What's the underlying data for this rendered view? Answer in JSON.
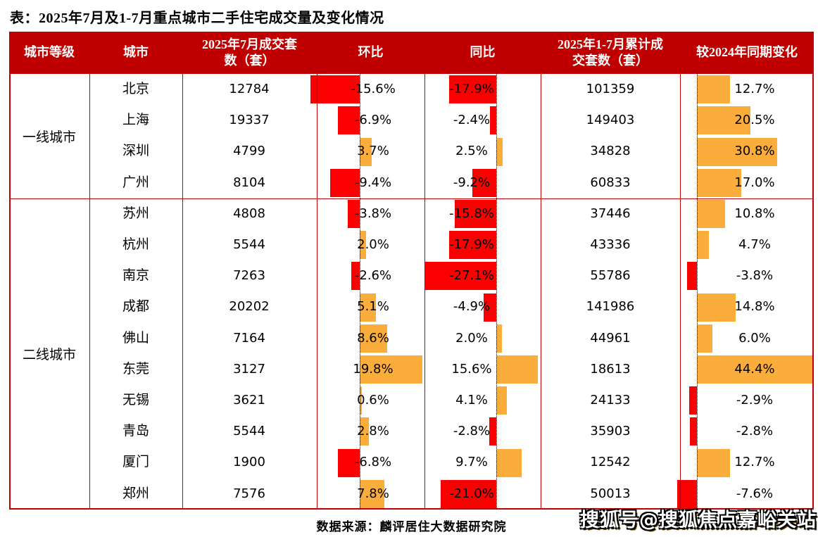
{
  "title": "表：2025年7月及1-7月重点城市二手住宅成交量及变化情况",
  "colors": {
    "header_bg": "#c00000",
    "border": "#c00000",
    "bar_negative": "#fb0000",
    "bar_positive": "#fbad3c"
  },
  "table": {
    "headers": {
      "tier": "城市等级",
      "city": "城市",
      "jul_volume": "2025年7月成交套\n数（套）",
      "mom": "环比",
      "yoy": "同比",
      "cum_volume": "2025年1-7月累计成\n交套数（套）",
      "cum_change": "较2024年同期变化"
    },
    "groups": [
      {
        "tier": "一线城市",
        "rows": [
          {
            "city": "北京",
            "jul": "12784",
            "mom": -15.6,
            "mom_text": "-15.6%",
            "yoy": -17.9,
            "yoy_text": "-17.9%",
            "cum": "101359",
            "chg": 12.7,
            "chg_text": "12.7%"
          },
          {
            "city": "上海",
            "jul": "19337",
            "mom": -6.9,
            "mom_text": "-6.9%",
            "yoy": -2.4,
            "yoy_text": "-2.4%",
            "cum": "149403",
            "chg": 20.5,
            "chg_text": "20.5%"
          },
          {
            "city": "深圳",
            "jul": "4799",
            "mom": 3.7,
            "mom_text": "3.7%",
            "yoy": 2.5,
            "yoy_text": "2.5%",
            "cum": "34828",
            "chg": 30.8,
            "chg_text": "30.8%"
          },
          {
            "city": "广州",
            "jul": "8104",
            "mom": -9.4,
            "mom_text": "-9.4%",
            "yoy": -9.2,
            "yoy_text": "-9.2%",
            "cum": "60833",
            "chg": 17.0,
            "chg_text": "17.0%"
          }
        ]
      },
      {
        "tier": "二线城市",
        "rows": [
          {
            "city": "苏州",
            "jul": "4808",
            "mom": -3.8,
            "mom_text": "-3.8%",
            "yoy": -15.8,
            "yoy_text": "-15.8%",
            "cum": "37446",
            "chg": 10.8,
            "chg_text": "10.8%"
          },
          {
            "city": "杭州",
            "jul": "5544",
            "mom": 2.0,
            "mom_text": "2.0%",
            "yoy": -17.9,
            "yoy_text": "-17.9%",
            "cum": "43336",
            "chg": 4.7,
            "chg_text": "4.7%"
          },
          {
            "city": "南京",
            "jul": "7263",
            "mom": -2.6,
            "mom_text": "-2.6%",
            "yoy": -27.1,
            "yoy_text": "-27.1%",
            "cum": "55786",
            "chg": -3.8,
            "chg_text": "-3.8%"
          },
          {
            "city": "成都",
            "jul": "20202",
            "mom": 5.1,
            "mom_text": "5.1%",
            "yoy": -4.9,
            "yoy_text": "-4.9%",
            "cum": "141986",
            "chg": 14.8,
            "chg_text": "14.8%"
          },
          {
            "city": "佛山",
            "jul": "7164",
            "mom": 8.6,
            "mom_text": "8.6%",
            "yoy": 2.0,
            "yoy_text": "2.0%",
            "cum": "44961",
            "chg": 6.0,
            "chg_text": "6.0%"
          },
          {
            "city": "东莞",
            "jul": "3127",
            "mom": 19.8,
            "mom_text": "19.8%",
            "yoy": 15.6,
            "yoy_text": "15.6%",
            "cum": "18613",
            "chg": 44.4,
            "chg_text": "44.4%"
          },
          {
            "city": "无锡",
            "jul": "3621",
            "mom": 0.6,
            "mom_text": "0.6%",
            "yoy": 4.1,
            "yoy_text": "4.1%",
            "cum": "24133",
            "chg": -2.9,
            "chg_text": "-2.9%"
          },
          {
            "city": "青岛",
            "jul": "5544",
            "mom": 2.8,
            "mom_text": "2.8%",
            "yoy": -2.8,
            "yoy_text": "-2.8%",
            "cum": "35903",
            "chg": -2.8,
            "chg_text": "-2.8%"
          },
          {
            "city": "厦门",
            "jul": "1900",
            "mom": -6.8,
            "mom_text": "-6.8%",
            "yoy": 9.7,
            "yoy_text": "9.7%",
            "cum": "12542",
            "chg": 12.7,
            "chg_text": "12.7%"
          },
          {
            "city": "郑州",
            "jul": "7576",
            "mom": 7.8,
            "mom_text": "7.8%",
            "yoy": -21.0,
            "yoy_text": "-21.0%",
            "cum": "50013",
            "chg": -7.6,
            "chg_text": "-7.6%"
          }
        ]
      }
    ]
  },
  "footer": {
    "source": "数据来源：麟评居住大数据研究院",
    "watermark": "搜狐号@搜狐焦点嘉峪关站"
  },
  "chart_data": {
    "type": "table",
    "title": "表：2025年7月及1-7月重点城市二手住宅成交量及变化情况",
    "columns": [
      "城市等级",
      "城市",
      "2025年7月成交套数（套）",
      "环比",
      "同比",
      "2025年1-7月累计成交套数（套）",
      "较2024年同期变化"
    ],
    "rows": [
      [
        "一线城市",
        "北京",
        12784,
        -15.6,
        -17.9,
        101359,
        12.7
      ],
      [
        "一线城市",
        "上海",
        19337,
        -6.9,
        -2.4,
        149403,
        20.5
      ],
      [
        "一线城市",
        "深圳",
        4799,
        3.7,
        2.5,
        34828,
        30.8
      ],
      [
        "一线城市",
        "广州",
        8104,
        -9.4,
        -9.2,
        60833,
        17.0
      ],
      [
        "二线城市",
        "苏州",
        4808,
        -3.8,
        -15.8,
        37446,
        10.8
      ],
      [
        "二线城市",
        "杭州",
        5544,
        2.0,
        -17.9,
        43336,
        4.7
      ],
      [
        "二线城市",
        "南京",
        7263,
        -2.6,
        -27.1,
        55786,
        -3.8
      ],
      [
        "二线城市",
        "成都",
        20202,
        5.1,
        -4.9,
        141986,
        14.8
      ],
      [
        "二线城市",
        "佛山",
        7164,
        8.6,
        2.0,
        44961,
        6.0
      ],
      [
        "二线城市",
        "东莞",
        3127,
        19.8,
        15.6,
        18613,
        44.4
      ],
      [
        "二线城市",
        "无锡",
        3621,
        0.6,
        4.1,
        24133,
        -2.9
      ],
      [
        "二线城市",
        "青岛",
        5544,
        2.8,
        -2.8,
        35903,
        -2.8
      ],
      [
        "二线城市",
        "厦门",
        1900,
        -6.8,
        9.7,
        12542,
        12.7
      ],
      [
        "二线城市",
        "郑州",
        7576,
        7.8,
        -21.0,
        50013,
        -7.6
      ]
    ],
    "bar_encoding": {
      "negative_color": "#fb0000",
      "positive_color": "#fbad3c",
      "bar_columns": [
        "环比",
        "同比",
        "较2024年同期变化"
      ]
    }
  }
}
